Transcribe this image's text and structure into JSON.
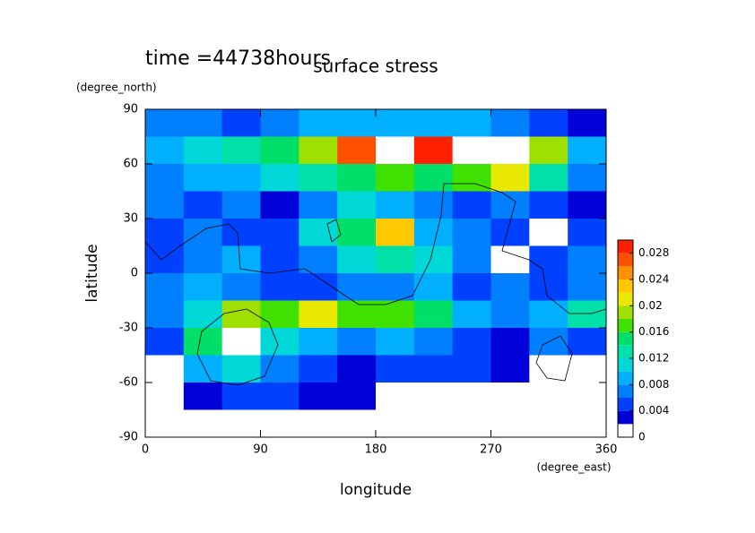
{
  "chart_data": {
    "type": "contour",
    "title": "surface stress",
    "subtitle": "time =44738hours",
    "x_label": "longitude",
    "x_unit": "(degree_east)",
    "y_label": "latitude",
    "y_unit": "(degree_north)",
    "xlim": [
      0,
      360
    ],
    "xticks": [
      0,
      90,
      180,
      270,
      360
    ],
    "ylim": [
      -90,
      90
    ],
    "yticks": [
      -90,
      -60,
      -30,
      0,
      30,
      60,
      90
    ],
    "x": [
      15,
      45,
      75,
      105,
      135,
      165,
      195,
      225,
      255,
      285,
      315,
      345
    ],
    "y": [
      82.5,
      67.5,
      52.5,
      37.5,
      22.5,
      7.5,
      -7.5,
      -22.5,
      -37.5,
      -52.5,
      -67.5,
      -82.5
    ],
    "z": [
      [
        0.006,
        0.006,
        0.005,
        0.006,
        0.008,
        0.008,
        0.008,
        0.008,
        0.008,
        0.006,
        0.004,
        0.003
      ],
      [
        0.008,
        0.01,
        0.012,
        0.014,
        0.018,
        0.026,
        0.031,
        0.028,
        0.03,
        0.031,
        0.018,
        0.008
      ],
      [
        0.006,
        0.008,
        0.008,
        0.01,
        0.012,
        0.014,
        0.016,
        0.014,
        0.016,
        0.02,
        0.012,
        0.006
      ],
      [
        0.006,
        0.004,
        0.006,
        0.003,
        0.006,
        0.01,
        0.008,
        0.006,
        0.004,
        0.006,
        0.004,
        0.002
      ],
      [
        0.004,
        0.006,
        0.004,
        0.004,
        0.01,
        0.014,
        0.022,
        0.008,
        0.006,
        0.004,
        0.001,
        0.004
      ],
      [
        0.004,
        0.006,
        0.008,
        0.004,
        0.006,
        0.01,
        0.012,
        0.01,
        0.006,
        0.001,
        0.004,
        0.006
      ],
      [
        0.006,
        0.008,
        0.006,
        0.004,
        0.004,
        0.006,
        0.006,
        0.008,
        0.004,
        0.006,
        0.004,
        0.006
      ],
      [
        0.006,
        0.01,
        0.018,
        0.016,
        0.02,
        0.016,
        0.016,
        0.014,
        0.008,
        0.006,
        0.008,
        0.012
      ],
      [
        0.004,
        0.014,
        0.031,
        0.01,
        0.008,
        0.006,
        0.008,
        0.006,
        0.004,
        0.002,
        0.006,
        0.004
      ],
      [
        0.001,
        0.008,
        0.01,
        0.006,
        0.004,
        0.002,
        0.004,
        0.004,
        0.004,
        0.002,
        0.001,
        0.001
      ],
      [
        0.001,
        0.002,
        0.004,
        0.004,
        0.003,
        0.002,
        0.001,
        0.001,
        0.001,
        0.001,
        0.001,
        0.001
      ],
      [
        0.001,
        0.001,
        0.001,
        0.001,
        0.001,
        0.001,
        0.001,
        0.001,
        0.001,
        0.001,
        0.001,
        0.001
      ]
    ],
    "levels": [
      0,
      0.002,
      0.004,
      0.006,
      0.008,
      0.01,
      0.012,
      0.014,
      0.016,
      0.018,
      0.02,
      0.022,
      0.024,
      0.026,
      0.028,
      0.03
    ],
    "colors": [
      "#ffffff",
      "#0000d8",
      "#0040ff",
      "#0080ff",
      "#00b0ff",
      "#00d8d8",
      "#00e0a8",
      "#00e068",
      "#40e000",
      "#a0e000",
      "#e8e800",
      "#ffc800",
      "#ff9000",
      "#ff5000",
      "#ff2000"
    ],
    "over_color": "#ffffff",
    "colorbar_ticks": [
      0,
      0.004,
      0.008,
      0.012,
      0.016,
      0.02,
      0.024,
      0.028
    ]
  }
}
